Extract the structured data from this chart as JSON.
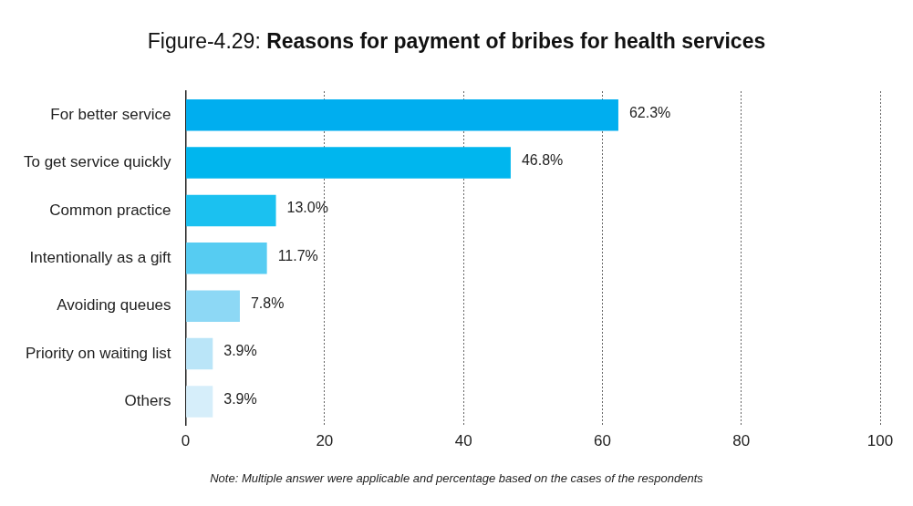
{
  "chart_data": {
    "type": "bar",
    "orientation": "horizontal",
    "title": "Figure-4.29: Reasons for payment of bribes for health services",
    "categories": [
      "For better service",
      "To get service quickly",
      "Common practice",
      "Intentionally as a gift",
      "Avoiding queues",
      "Priority on waiting list",
      "Others"
    ],
    "values": [
      62.3,
      46.8,
      13.0,
      11.7,
      7.8,
      3.9,
      3.9
    ],
    "colors": [
      "#00aeef",
      "#00b6ee",
      "#1bc1f0",
      "#56ccf2",
      "#8dd8f5",
      "#bae5f8",
      "#d6eefa"
    ],
    "value_labels": [
      "62.3%",
      "46.8%",
      "13.0%",
      "11.7%",
      "7.8%",
      "3.9%",
      "3.9%"
    ],
    "xlim": [
      0,
      100
    ],
    "xticks": [
      0,
      20,
      40,
      60,
      80,
      100
    ],
    "grid": "x",
    "legend": false,
    "annotations": [
      "Note: Multiple answer were applicable and percentage based on the cases of the respondents"
    ]
  }
}
